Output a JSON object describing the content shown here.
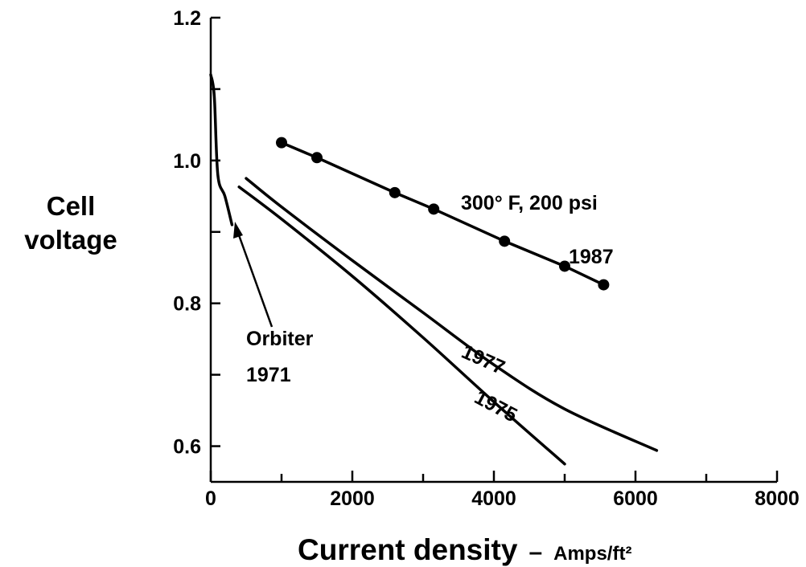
{
  "chart_data": {
    "type": "line",
    "title": "",
    "xlabel": "Current density",
    "xunit_prefix": "–",
    "xunit": "Amps/ft²",
    "ylabel": [
      "Cell",
      "voltage"
    ],
    "xlim": [
      0,
      8000
    ],
    "ylim": [
      0.55,
      1.2
    ],
    "x_ticks": [
      0,
      2000,
      4000,
      6000,
      8000
    ],
    "x_minor_ticks": [
      1000,
      3000,
      5000,
      7000
    ],
    "y_ticks": [
      0.6,
      0.8,
      1.0,
      1.2
    ],
    "y_minor_ticks": [
      0.7,
      0.9,
      1.1
    ],
    "series": [
      {
        "name": "Orbiter 1971",
        "label_lines": [
          "Orbiter",
          "1971"
        ],
        "markers": false,
        "x": [
          0,
          50,
          100,
          200,
          300
        ],
        "y": [
          1.12,
          1.09,
          0.98,
          0.95,
          0.91
        ]
      },
      {
        "name": "1975",
        "markers": false,
        "x": [
          400,
          1000,
          2000,
          3000,
          4000,
          5000
        ],
        "y": [
          0.963,
          0.918,
          0.838,
          0.752,
          0.662,
          0.575
        ]
      },
      {
        "name": "1977",
        "markers": false,
        "x": [
          500,
          1000,
          2000,
          3000,
          4000,
          5000,
          6300
        ],
        "y": [
          0.975,
          0.935,
          0.86,
          0.787,
          0.714,
          0.652,
          0.594
        ]
      },
      {
        "name": "1987",
        "label_lines": [
          "300° F, 200 psi",
          "1987"
        ],
        "markers": true,
        "x": [
          1000,
          1500,
          2600,
          3150,
          4150,
          5000,
          5550
        ],
        "y": [
          1.025,
          1.004,
          0.955,
          0.932,
          0.887,
          0.852,
          0.826
        ]
      }
    ]
  }
}
